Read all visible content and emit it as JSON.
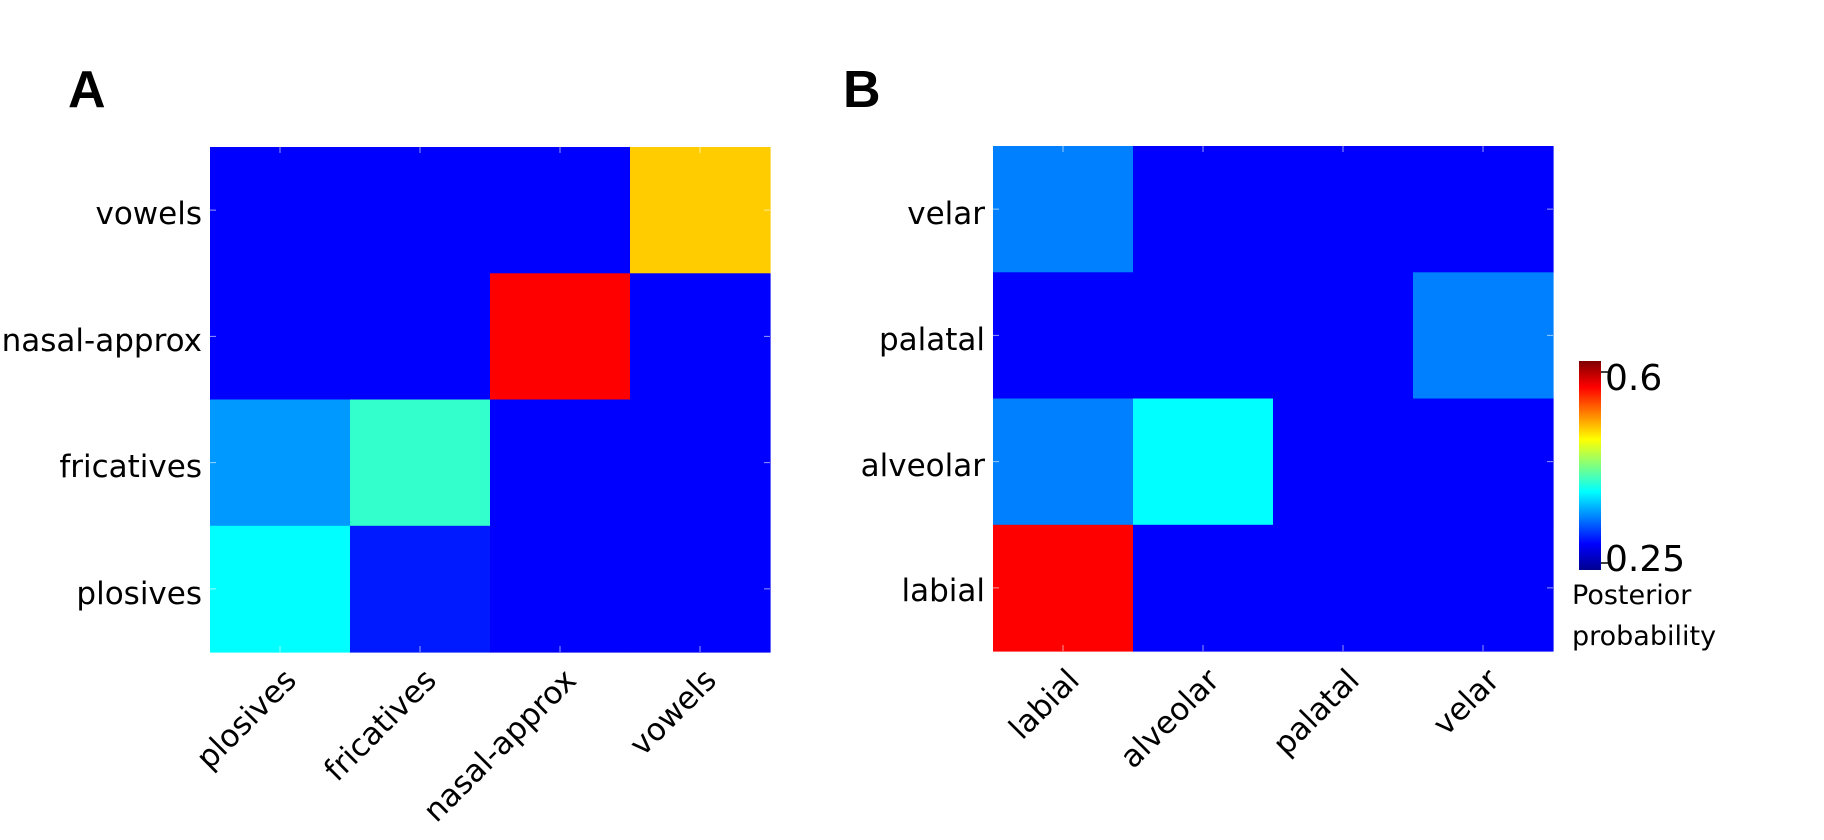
{
  "panels": [
    {
      "label": "A",
      "rows": [
        "vowels",
        "nasal-approx",
        "fricatives",
        "plosives"
      ],
      "cols": [
        "plosives",
        "fricatives",
        "nasal-approx",
        "vowels"
      ]
    },
    {
      "label": "B",
      "rows": [
        "velar",
        "palatal",
        "alveolar",
        "labial"
      ],
      "cols": [
        "labial",
        "alveolar",
        "palatal",
        "velar"
      ]
    }
  ],
  "colorbar": {
    "max_label": "0.6",
    "min_label": "0.25",
    "title_line1": "Posterior",
    "title_line2": "probability",
    "min": 0.25,
    "max": 0.6
  },
  "chart_data": [
    {
      "type": "heatmap",
      "title": "A",
      "y_categories": [
        "vowels",
        "nasal-approx",
        "fricatives",
        "plosives"
      ],
      "x_categories": [
        "plosives",
        "fricatives",
        "nasal-approx",
        "vowels"
      ],
      "values": [
        [
          0.25,
          0.25,
          0.25,
          0.47
        ],
        [
          0.25,
          0.25,
          0.55,
          0.25
        ],
        [
          0.31,
          0.37,
          0.25,
          0.25
        ],
        [
          0.35,
          0.26,
          0.25,
          0.25
        ]
      ],
      "colorscale": "jet",
      "zlim": [
        0.25,
        0.6
      ]
    },
    {
      "type": "heatmap",
      "title": "B",
      "y_categories": [
        "velar",
        "palatal",
        "alveolar",
        "labial"
      ],
      "x_categories": [
        "labial",
        "alveolar",
        "palatal",
        "velar"
      ],
      "values": [
        [
          0.3,
          0.25,
          0.25,
          0.25
        ],
        [
          0.25,
          0.25,
          0.25,
          0.3
        ],
        [
          0.3,
          0.35,
          0.25,
          0.25
        ],
        [
          0.55,
          0.25,
          0.25,
          0.25
        ]
      ],
      "colorscale": "jet",
      "zlim": [
        0.25,
        0.6
      ]
    }
  ]
}
